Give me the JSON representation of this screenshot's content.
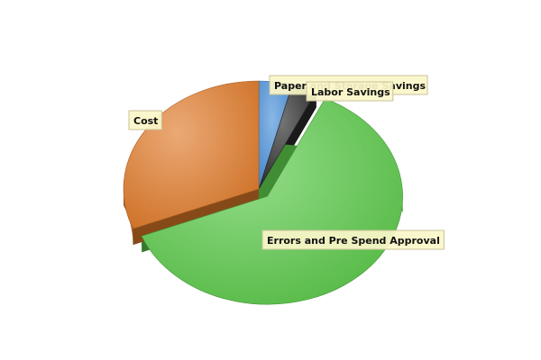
{
  "chart_data": {
    "type": "pie",
    "style": "3d",
    "title": "",
    "legend": "none",
    "slices": [
      {
        "label": "Paper and Storage Savings",
        "value": 4,
        "color": "#4a90d9"
      },
      {
        "label": "Labor Savings",
        "value": 3,
        "color": "#2b2b2b"
      },
      {
        "label": "Errors and Pre Spend Approval",
        "value": 62,
        "color": "#5bc94a"
      },
      {
        "label": "Cost",
        "value": 31,
        "color": "#e07b2a"
      }
    ]
  }
}
